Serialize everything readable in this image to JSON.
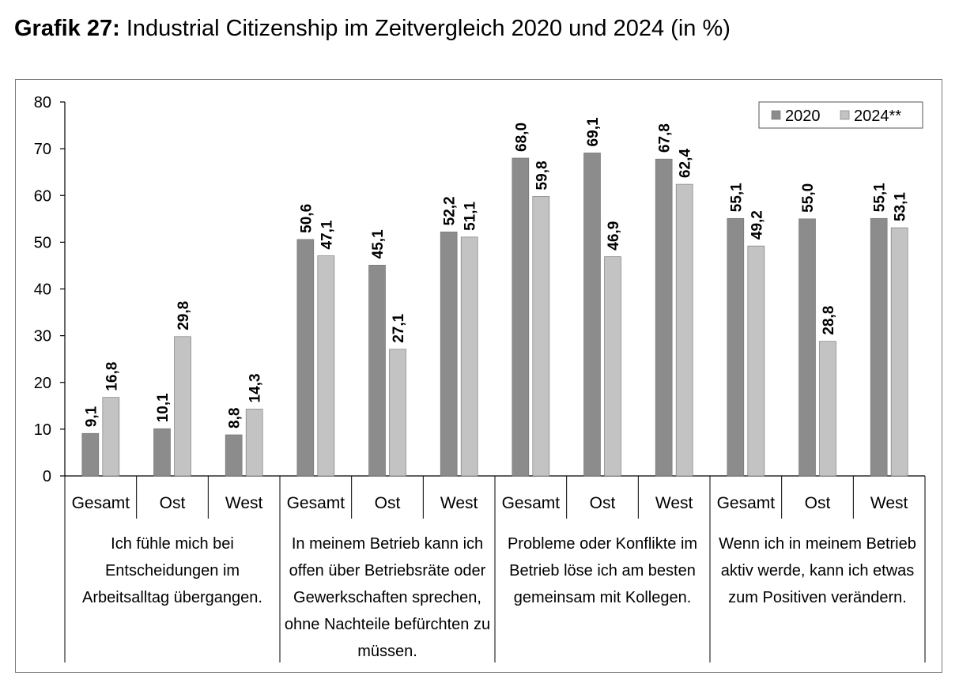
{
  "title": {
    "prefix": "Grafik 27:",
    "text": "Industrial Citizenship im Zeitvergleich 2020 und 2024 (in %)"
  },
  "chart_data": {
    "type": "bar",
    "title": "Industrial Citizenship im Zeitvergleich 2020 und 2024 (in %)",
    "ylim": [
      0,
      80
    ],
    "yticks": [
      0,
      10,
      20,
      30,
      40,
      50,
      60,
      70,
      80
    ],
    "legend_position": "top-right",
    "groups": [
      "Ich fühle mich bei Entscheidungen im Arbeitsalltag übergangen.",
      "In meinem Betrieb kann ich offen über Betriebsräte oder Gewerkschaften sprechen, ohne Nachteile befürchten zu müssen.",
      "Probleme oder Konflikte im Betrieb löse ich am besten gemeinsam mit Kollegen.",
      "Wenn ich in meinem Betrieb aktiv werde, kann ich etwas zum Positiven verändern."
    ],
    "group_lines": [
      [
        "Ich fühle mich bei",
        "Entscheidungen im",
        "Arbeitsalltag übergangen."
      ],
      [
        "In meinem Betrieb kann ich",
        "offen über Betriebsräte oder",
        "Gewerkschaften sprechen,",
        "ohne Nachteile befürchten zu",
        "müssen."
      ],
      [
        "Probleme oder Konflikte im",
        "Betrieb löse ich am besten",
        "gemeinsam mit Kollegen."
      ],
      [
        "Wenn ich in meinem Betrieb",
        "aktiv werde, kann ich etwas",
        "zum Positiven verändern."
      ]
    ],
    "categories": [
      "Gesamt",
      "Ost",
      "West",
      "Gesamt",
      "Ost",
      "West",
      "Gesamt",
      "Ost",
      "West",
      "Gesamt",
      "Ost",
      "West"
    ],
    "series": [
      {
        "name": "2020",
        "color": "#8c8c8c",
        "values": [
          9.1,
          10.1,
          8.8,
          50.6,
          45.1,
          52.2,
          68.0,
          69.1,
          67.8,
          55.1,
          55.0,
          55.1
        ],
        "labels": [
          "9,1",
          "10,1",
          "8,8",
          "50,6",
          "45,1",
          "52,2",
          "68,0",
          "69,1",
          "67,8",
          "55,1",
          "55,0",
          "55,1"
        ]
      },
      {
        "name": "2024**",
        "color": "#c3c3c3",
        "values": [
          16.8,
          29.8,
          14.3,
          47.1,
          27.1,
          51.1,
          59.8,
          46.9,
          62.4,
          49.2,
          28.8,
          53.1
        ],
        "labels": [
          "16,8",
          "29,8",
          "14,3",
          "47,1",
          "27,1",
          "51,1",
          "59,8",
          "46,9",
          "62,4",
          "49,2",
          "28,8",
          "53,1"
        ]
      }
    ]
  }
}
